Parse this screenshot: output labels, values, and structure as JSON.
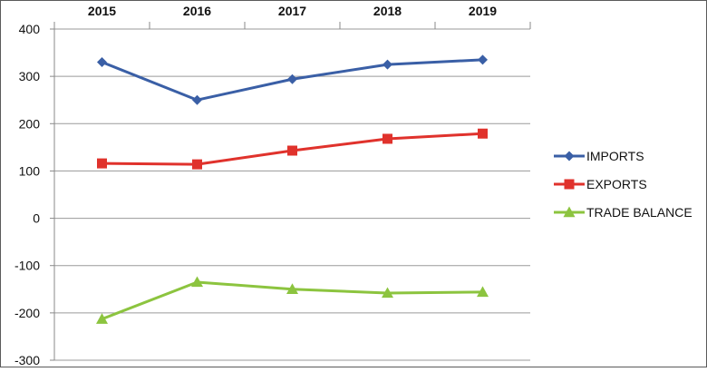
{
  "chart_data": {
    "type": "line",
    "categories": [
      "2015",
      "2016",
      "2017",
      "2018",
      "2019"
    ],
    "y_ticks": [
      "400",
      "300",
      "200",
      "100",
      "0",
      "-100",
      "-200",
      "-300"
    ],
    "ylim": [
      -300,
      400
    ],
    "grid": "horizontal",
    "legend_position": "right",
    "x_axis_position": "top",
    "series": [
      {
        "name": "IMPORTS",
        "values": [
          330,
          250,
          294,
          325,
          335
        ],
        "color": "#3a5fa6",
        "marker": "diamond"
      },
      {
        "name": "EXPORTS",
        "values": [
          116,
          114,
          143,
          168,
          179
        ],
        "color": "#e0322c",
        "marker": "square"
      },
      {
        "name": "TRADE BALANCE",
        "values": [
          -213,
          -135,
          -150,
          -158,
          -156
        ],
        "color": "#8cc43f",
        "marker": "triangle"
      }
    ]
  }
}
